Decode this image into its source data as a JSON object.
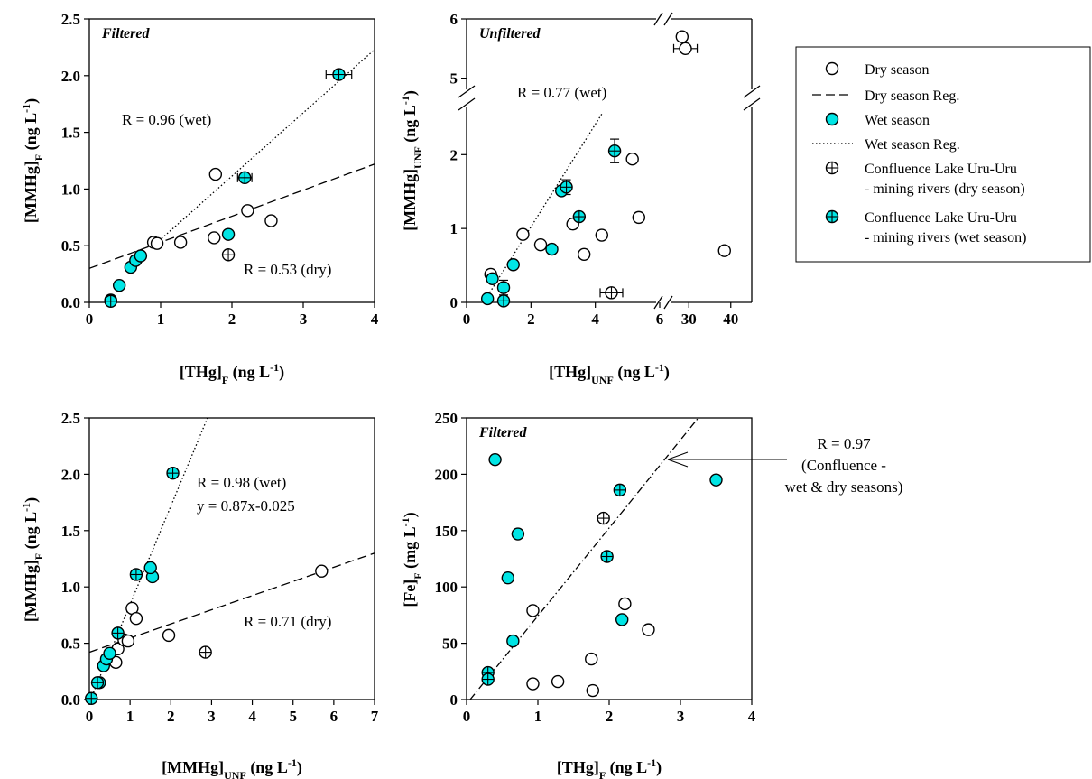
{
  "figure": {
    "panels": [
      "A",
      "B",
      "C",
      "D"
    ]
  },
  "chart_data": [
    {
      "id": "A",
      "type": "scatter",
      "tag": "Filtered",
      "xlabel": "[THg]F (ng L-1)",
      "ylabel": "[MMHg]F (ng L-1)",
      "xlim": [
        0,
        4
      ],
      "ylim": [
        0,
        2.5
      ],
      "xticks": [
        "0",
        "1",
        "2",
        "3",
        "4"
      ],
      "yticks": [
        "0.0",
        "0.5",
        "1.0",
        "1.5",
        "2.0",
        "2.5"
      ],
      "series": [
        {
          "name": "Dry season",
          "points": [
            [
              0.9,
              0.53
            ],
            [
              1.28,
              0.53
            ],
            [
              1.75,
              0.57
            ],
            [
              1.77,
              1.13
            ],
            [
              2.22,
              0.81
            ],
            [
              2.55,
              0.72
            ],
            [
              0.95,
              0.52
            ]
          ]
        },
        {
          "name": "Wet season",
          "points": [
            [
              0.3,
              0.02
            ],
            [
              0.42,
              0.15
            ],
            [
              0.58,
              0.31
            ],
            [
              0.65,
              0.37
            ],
            [
              0.72,
              0.41
            ],
            [
              1.95,
              0.6
            ]
          ]
        },
        {
          "name": "Confluence Lake Uru-Uru - mining rivers (dry season)",
          "points": [
            [
              1.95,
              0.42
            ]
          ]
        },
        {
          "name": "Confluence Lake Uru-Uru - mining rivers (wet season)",
          "points": [
            [
              0.3,
              0.01
            ],
            [
              2.18,
              1.1
            ],
            [
              3.5,
              2.01
            ]
          ]
        }
      ],
      "xerr": [
        [
          2.18,
          1.1,
          0.1
        ],
        [
          3.5,
          2.01,
          0.18
        ]
      ],
      "regressions": [
        {
          "name": "Dry season Reg.",
          "style": "dashed",
          "from": [
            0,
            0.3
          ],
          "to": [
            4,
            1.22
          ]
        },
        {
          "name": "Wet season Reg.",
          "style": "dotted",
          "from": [
            0.9,
            0.5
          ],
          "to": [
            4,
            2.23
          ]
        }
      ],
      "annotations": [
        "R = 0.96 (wet)",
        "R = 0.53 (dry)"
      ]
    },
    {
      "id": "B",
      "type": "scatter",
      "tag": "Unfiltered",
      "xlabel": "[THg]UNF (ng L-1)",
      "ylabel": "[MMHg]UNF (ng L-1)",
      "axis_break": true,
      "xticks": [
        "0",
        "2",
        "4",
        "6",
        "30",
        "40"
      ],
      "yticks": [
        "0",
        "1",
        "2",
        "5",
        "6"
      ],
      "series": [
        {
          "name": "Dry season",
          "points": [
            [
              0.75,
              0.38
            ],
            [
              1.75,
              0.92
            ],
            [
              2.3,
              0.78
            ],
            [
              3.3,
              1.06
            ],
            [
              3.65,
              0.65
            ],
            [
              4.2,
              0.91
            ],
            [
              5.15,
              1.94
            ],
            [
              5.35,
              1.15
            ],
            [
              38.5,
              0.7
            ],
            [
              28.4,
              5.7
            ],
            [
              29.2,
              5.5
            ]
          ]
        },
        {
          "name": "Wet season",
          "points": [
            [
              0.65,
              0.05
            ],
            [
              0.8,
              0.32
            ],
            [
              1.15,
              0.2
            ],
            [
              1.45,
              0.51
            ],
            [
              2.65,
              0.72
            ],
            [
              2.95,
              1.51
            ]
          ]
        },
        {
          "name": "Confluence Lake Uru-Uru - mining rivers (dry season)",
          "points": [
            [
              4.5,
              0.13
            ]
          ]
        },
        {
          "name": "Confluence Lake Uru-Uru - mining rivers (wet season)",
          "points": [
            [
              1.15,
              0.02
            ],
            [
              3.1,
              1.56
            ],
            [
              3.5,
              1.16
            ],
            [
              4.6,
              2.05
            ]
          ]
        }
      ],
      "annotations": [
        "R = 0.77 (wet)"
      ]
    },
    {
      "id": "C",
      "type": "scatter",
      "tag": "",
      "xlabel": "[MMHg]UNF (ng L-1)",
      "ylabel": "[MMHg]F (ng L-1)",
      "xlim": [
        0,
        7
      ],
      "ylim": [
        0,
        2.5
      ],
      "xticks": [
        "0",
        "1",
        "2",
        "3",
        "4",
        "5",
        "6",
        "7"
      ],
      "yticks": [
        "0.0",
        "0.5",
        "1.0",
        "1.5",
        "2.0",
        "2.5"
      ],
      "series": [
        {
          "name": "Dry season",
          "points": [
            [
              0.65,
              0.33
            ],
            [
              0.7,
              0.45
            ],
            [
              0.85,
              0.53
            ],
            [
              0.95,
              0.52
            ],
            [
              1.05,
              0.81
            ],
            [
              1.15,
              0.72
            ],
            [
              1.95,
              0.57
            ],
            [
              5.7,
              1.14
            ]
          ]
        },
        {
          "name": "Wet season",
          "points": [
            [
              0.25,
              0.15
            ],
            [
              0.35,
              0.3
            ],
            [
              0.42,
              0.36
            ],
            [
              0.5,
              0.41
            ],
            [
              1.55,
              1.09
            ],
            [
              1.5,
              1.17
            ]
          ]
        },
        {
          "name": "Confluence Lake Uru-Uru - mining rivers (dry season)",
          "points": [
            [
              2.85,
              0.42
            ]
          ]
        },
        {
          "name": "Confluence Lake Uru-Uru - mining rivers (wet season)",
          "points": [
            [
              0.05,
              0.01
            ],
            [
              0.2,
              0.15
            ],
            [
              0.7,
              0.59
            ],
            [
              1.15,
              1.11
            ],
            [
              2.05,
              2.01
            ]
          ]
        }
      ],
      "regressions": [
        {
          "name": "Dry season Reg.",
          "style": "dashed",
          "from": [
            0,
            0.42
          ],
          "to": [
            7,
            1.3
          ]
        },
        {
          "name": "Wet season Reg.",
          "style": "dotted",
          "from": [
            0,
            -0.025
          ],
          "to": [
            2.9,
            2.5
          ]
        }
      ],
      "annotations": [
        "R = 0.98 (wet)",
        "y = 0.87x-0.025",
        "R = 0.71 (dry)"
      ]
    },
    {
      "id": "D",
      "type": "scatter",
      "tag": "Filtered",
      "xlabel": "[THg]F (ng L-1)",
      "ylabel": "[Fe]F (mg L-1)",
      "xlim": [
        0,
        4
      ],
      "ylim": [
        0,
        250
      ],
      "xticks": [
        "0",
        "1",
        "2",
        "3",
        "4"
      ],
      "yticks": [
        "0",
        "50",
        "100",
        "150",
        "200",
        "250"
      ],
      "series": [
        {
          "name": "Dry season",
          "points": [
            [
              0.93,
              79
            ],
            [
              0.93,
              14
            ],
            [
              1.28,
              16
            ],
            [
              1.75,
              36
            ],
            [
              1.77,
              8
            ],
            [
              2.22,
              85
            ],
            [
              2.55,
              62
            ]
          ]
        },
        {
          "name": "Wet season",
          "points": [
            [
              0.4,
              213
            ],
            [
              0.58,
              108
            ],
            [
              0.65,
              52
            ],
            [
              0.72,
              147
            ],
            [
              2.18,
              71
            ],
            [
              3.5,
              195
            ]
          ]
        },
        {
          "name": "Confluence Lake Uru-Uru - mining rivers (dry season)",
          "points": [
            [
              1.92,
              161
            ]
          ]
        },
        {
          "name": "Confluence Lake Uru-Uru - mining rivers (wet season)",
          "points": [
            [
              0.3,
              24
            ],
            [
              0.3,
              18
            ],
            [
              1.97,
              127
            ],
            [
              2.15,
              186
            ]
          ]
        }
      ],
      "regressions": [
        {
          "name": "Confluence",
          "style": "dashdot",
          "from": [
            0.05,
            0
          ],
          "to": [
            3.25,
            250
          ]
        }
      ],
      "annotations": [
        "R = 0.97",
        "(Confluence -",
        "wet & dry seasons)"
      ]
    }
  ],
  "legend": {
    "entries": [
      {
        "label_lines": [
          "Dry season"
        ],
        "symbol": "open-circle"
      },
      {
        "label_lines": [
          "Dry season Reg."
        ],
        "symbol": "dashed-line"
      },
      {
        "label_lines": [
          "Wet season"
        ],
        "symbol": "cyan-circle"
      },
      {
        "label_lines": [
          "Wet season Reg."
        ],
        "symbol": "dotted-line"
      },
      {
        "label_lines": [
          "Confluence Lake Uru-Uru",
          "- mining rivers (dry season)"
        ],
        "symbol": "open-crosshair"
      },
      {
        "label_lines": [
          "Confluence Lake Uru-Uru",
          "- mining rivers (wet season)"
        ],
        "symbol": "cyan-crosshair"
      }
    ]
  },
  "colors": {
    "wet": "#00e5e5",
    "dry_fill": "#ffffff",
    "stroke": "#000000"
  }
}
